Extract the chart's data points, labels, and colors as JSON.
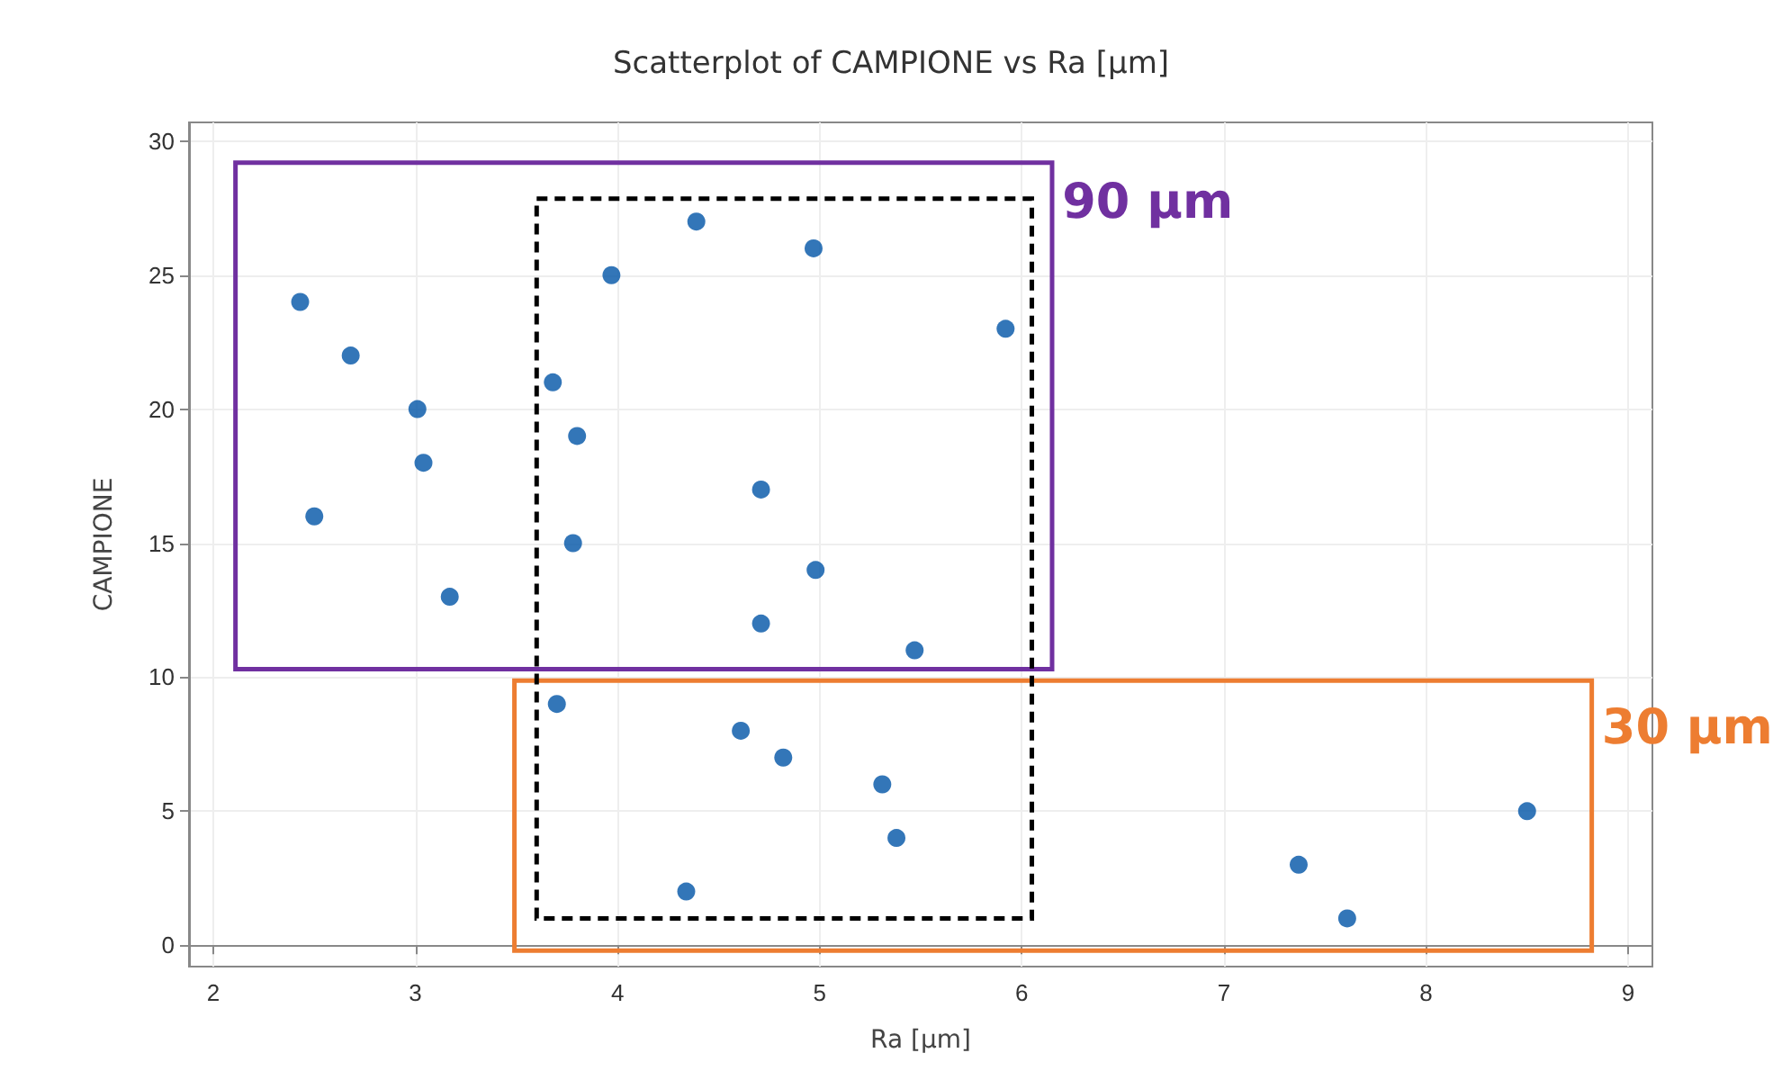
{
  "chart_data": {
    "type": "scatter",
    "title": "Scatterplot of CAMPIONE vs Ra [µm]",
    "xlabel": "Ra [µm]",
    "ylabel": "CAMPIONE",
    "x": [
      2.43,
      2.68,
      3.01,
      3.04,
      2.5,
      3.17,
      3.68,
      3.8,
      3.78,
      3.7,
      3.97,
      4.39,
      4.97,
      5.92,
      4.71,
      4.98,
      4.71,
      5.47,
      4.61,
      4.82,
      5.31,
      5.38,
      4.34,
      7.37,
      7.61,
      8.5
    ],
    "values": [
      24,
      22,
      20,
      18,
      16,
      13,
      21,
      19,
      15,
      9,
      25,
      27,
      26,
      23,
      17,
      14,
      12,
      11,
      8,
      7,
      6,
      4,
      2,
      3,
      1,
      5
    ],
    "color": "#0054a6",
    "marker": "circle",
    "grid": true,
    "xlim": [
      1.88,
      9.12
    ],
    "ylim": [
      -0.8,
      30.7
    ],
    "xticks": [
      2,
      3,
      4,
      5,
      6,
      7,
      8,
      9
    ],
    "yticks": [
      0,
      5,
      10,
      15,
      20,
      25,
      30
    ],
    "annotations": [
      "90 µm",
      "30 µm"
    ]
  }
}
